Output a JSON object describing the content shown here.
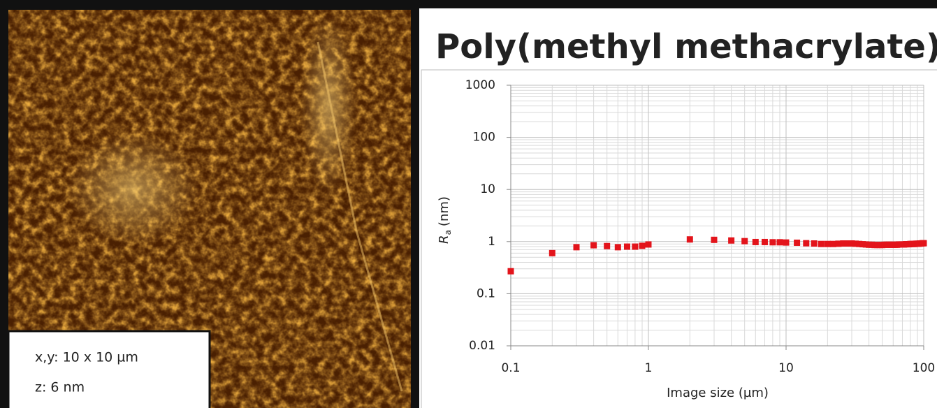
{
  "afm_image": {
    "scale_labels": [
      "x,y: 10 x 10 µm",
      "z: 6 nm"
    ]
  },
  "chart_data": {
    "type": "scatter",
    "title": "Poly(methyl methacrylate)",
    "xlabel": "Image size (µm)",
    "ylabel": [
      "R",
      "a",
      "(nm)"
    ],
    "xscale": "log",
    "yscale": "log",
    "grid": true,
    "xlim": [
      0.1,
      100
    ],
    "ylim": [
      0.01,
      1000
    ],
    "xticks": [
      0.1,
      1,
      10,
      100
    ],
    "yticks": [
      0.01,
      0.1,
      1,
      10,
      100,
      1000
    ],
    "series": [
      {
        "color": "#e3141b",
        "x": [
          0.1,
          0.2,
          0.3,
          0.4,
          0.5,
          0.6,
          0.7,
          0.8,
          0.9,
          1,
          2,
          3,
          4,
          5,
          6,
          7,
          8,
          9,
          10,
          12,
          14,
          16,
          18,
          20,
          22,
          24,
          26,
          28,
          30,
          32,
          34,
          36,
          38,
          40,
          42,
          44,
          46,
          48,
          50,
          52,
          54,
          56,
          58,
          60,
          62,
          64,
          66,
          68,
          70,
          72,
          74,
          76,
          78,
          80,
          82,
          84,
          86,
          88,
          90,
          92,
          94,
          96,
          98,
          100
        ],
        "values": [
          0.27,
          0.6,
          0.78,
          0.85,
          0.82,
          0.78,
          0.8,
          0.8,
          0.83,
          0.88,
          1.1,
          1.08,
          1.05,
          1.02,
          0.98,
          0.98,
          0.97,
          0.97,
          0.96,
          0.95,
          0.93,
          0.92,
          0.9,
          0.9,
          0.9,
          0.91,
          0.92,
          0.92,
          0.92,
          0.91,
          0.9,
          0.89,
          0.88,
          0.87,
          0.87,
          0.86,
          0.86,
          0.86,
          0.86,
          0.87,
          0.87,
          0.87,
          0.87,
          0.87,
          0.87,
          0.87,
          0.88,
          0.88,
          0.88,
          0.88,
          0.89,
          0.89,
          0.89,
          0.9,
          0.9,
          0.9,
          0.9,
          0.91,
          0.91,
          0.91,
          0.92,
          0.92,
          0.93,
          0.93
        ]
      }
    ]
  }
}
